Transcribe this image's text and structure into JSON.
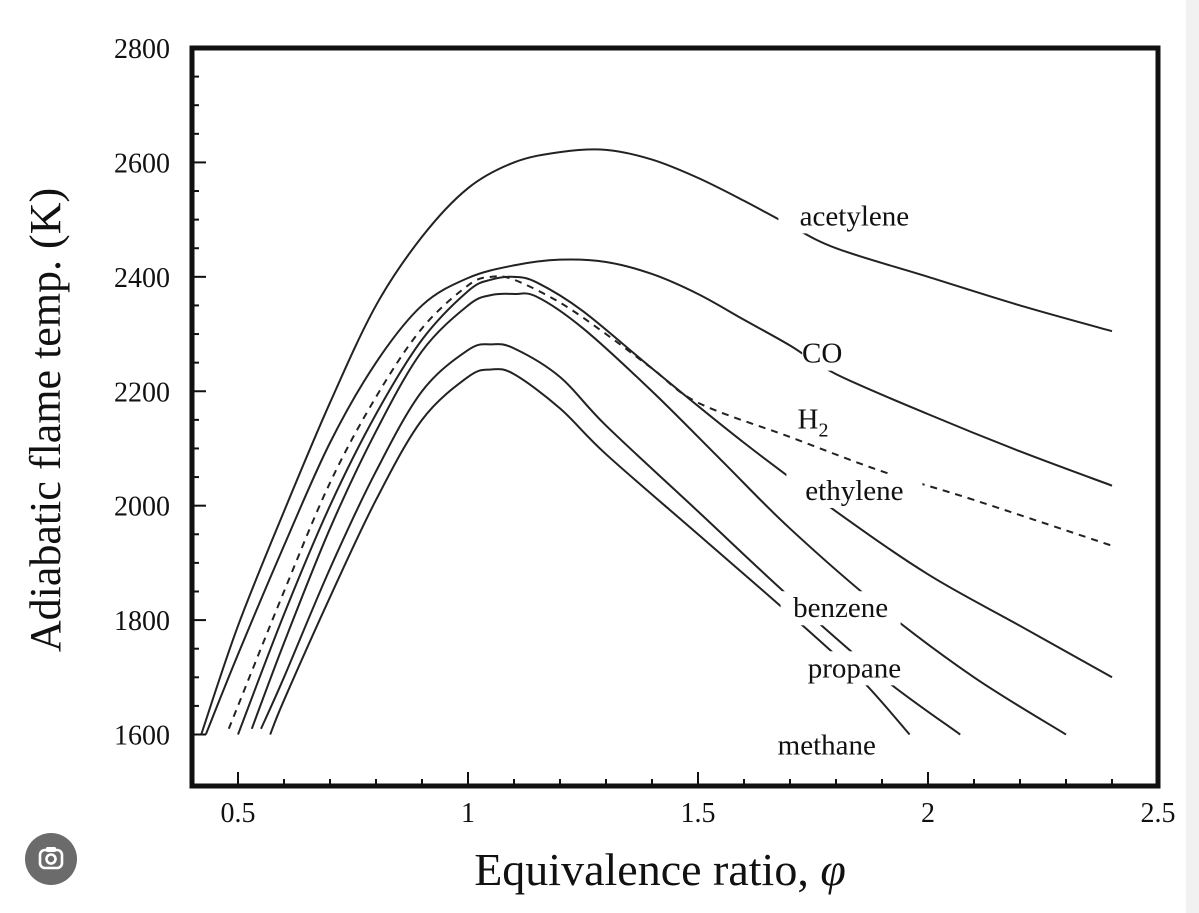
{
  "chart_data": {
    "type": "line",
    "title": "",
    "xlabel": "Equivalence ratio, ",
    "xlabel_symbol": "φ",
    "ylabel": "Adiabatic flame temp. (K)",
    "xlim": [
      0.4,
      2.5
    ],
    "ylim": [
      1510,
      2800
    ],
    "x_ticks": [
      0.5,
      1,
      1.5,
      2,
      2.5
    ],
    "x_tick_labels": [
      "0.5",
      "1",
      "1.5",
      "2",
      "2.5"
    ],
    "y_ticks": [
      1600,
      1800,
      2000,
      2200,
      2400,
      2600,
      2800
    ],
    "y_tick_labels": [
      "1600",
      "1800",
      "2000",
      "2200",
      "2400",
      "2600",
      "2800"
    ],
    "series": [
      {
        "name": "acetylene",
        "label": "acetylene",
        "dashed": false,
        "points": [
          [
            0.42,
            1600
          ],
          [
            0.5,
            1790
          ],
          [
            0.6,
            1990
          ],
          [
            0.7,
            2180
          ],
          [
            0.8,
            2350
          ],
          [
            0.9,
            2470
          ],
          [
            1.0,
            2555
          ],
          [
            1.1,
            2600
          ],
          [
            1.2,
            2618
          ],
          [
            1.3,
            2622
          ],
          [
            1.4,
            2605
          ],
          [
            1.5,
            2573
          ],
          [
            1.6,
            2533
          ],
          [
            1.7,
            2490
          ],
          [
            1.8,
            2450
          ],
          [
            2.0,
            2400
          ],
          [
            2.2,
            2350
          ],
          [
            2.4,
            2305
          ]
        ]
      },
      {
        "name": "CO",
        "label": "CO",
        "dashed": false,
        "points": [
          [
            0.43,
            1600
          ],
          [
            0.5,
            1740
          ],
          [
            0.6,
            1930
          ],
          [
            0.7,
            2110
          ],
          [
            0.8,
            2250
          ],
          [
            0.9,
            2350
          ],
          [
            1.0,
            2398
          ],
          [
            1.1,
            2420
          ],
          [
            1.2,
            2430
          ],
          [
            1.3,
            2426
          ],
          [
            1.4,
            2405
          ],
          [
            1.5,
            2370
          ],
          [
            1.6,
            2325
          ],
          [
            1.7,
            2280
          ],
          [
            1.8,
            2230
          ],
          [
            2.0,
            2160
          ],
          [
            2.2,
            2095
          ],
          [
            2.4,
            2035
          ]
        ]
      },
      {
        "name": "H2",
        "label": "H",
        "label_sub": "2",
        "dashed": true,
        "points": [
          [
            0.48,
            1610
          ],
          [
            0.6,
            1850
          ],
          [
            0.7,
            2040
          ],
          [
            0.8,
            2190
          ],
          [
            0.9,
            2310
          ],
          [
            1.0,
            2385
          ],
          [
            1.05,
            2400
          ],
          [
            1.1,
            2395
          ],
          [
            1.2,
            2355
          ],
          [
            1.3,
            2300
          ],
          [
            1.4,
            2240
          ],
          [
            1.5,
            2180
          ],
          [
            1.7,
            2120
          ],
          [
            1.9,
            2060
          ],
          [
            2.1,
            2010
          ],
          [
            2.4,
            1930
          ]
        ]
      },
      {
        "name": "ethylene",
        "label": "ethylene",
        "dashed": false,
        "points": [
          [
            0.5,
            1600
          ],
          [
            0.6,
            1810
          ],
          [
            0.7,
            2000
          ],
          [
            0.8,
            2160
          ],
          [
            0.9,
            2290
          ],
          [
            1.0,
            2375
          ],
          [
            1.05,
            2395
          ],
          [
            1.1,
            2400
          ],
          [
            1.15,
            2390
          ],
          [
            1.25,
            2340
          ],
          [
            1.4,
            2240
          ],
          [
            1.6,
            2110
          ],
          [
            1.8,
            1990
          ],
          [
            2.0,
            1880
          ],
          [
            2.2,
            1790
          ],
          [
            2.4,
            1700
          ]
        ]
      },
      {
        "name": "benzene",
        "label": "benzene",
        "dashed": false,
        "points": [
          [
            0.53,
            1610
          ],
          [
            0.6,
            1760
          ],
          [
            0.7,
            1960
          ],
          [
            0.8,
            2130
          ],
          [
            0.9,
            2270
          ],
          [
            1.0,
            2350
          ],
          [
            1.05,
            2368
          ],
          [
            1.1,
            2370
          ],
          [
            1.15,
            2365
          ],
          [
            1.25,
            2310
          ],
          [
            1.4,
            2200
          ],
          [
            1.55,
            2080
          ],
          [
            1.7,
            1960
          ],
          [
            1.9,
            1820
          ],
          [
            2.1,
            1700
          ],
          [
            2.3,
            1600
          ]
        ]
      },
      {
        "name": "propane",
        "label": "propane",
        "dashed": false,
        "points": [
          [
            0.55,
            1610
          ],
          [
            0.6,
            1700
          ],
          [
            0.7,
            1890
          ],
          [
            0.8,
            2060
          ],
          [
            0.9,
            2200
          ],
          [
            1.0,
            2272
          ],
          [
            1.05,
            2282
          ],
          [
            1.1,
            2275
          ],
          [
            1.2,
            2225
          ],
          [
            1.3,
            2140
          ],
          [
            1.5,
            1990
          ],
          [
            1.7,
            1840
          ],
          [
            1.9,
            1700
          ],
          [
            2.07,
            1600
          ]
        ]
      },
      {
        "name": "methane",
        "label": "methane",
        "dashed": false,
        "points": [
          [
            0.57,
            1600
          ],
          [
            0.6,
            1660
          ],
          [
            0.7,
            1840
          ],
          [
            0.8,
            2010
          ],
          [
            0.9,
            2150
          ],
          [
            1.0,
            2225
          ],
          [
            1.05,
            2238
          ],
          [
            1.1,
            2230
          ],
          [
            1.2,
            2170
          ],
          [
            1.3,
            2090
          ],
          [
            1.5,
            1950
          ],
          [
            1.7,
            1810
          ],
          [
            1.85,
            1700
          ],
          [
            1.96,
            1600
          ]
        ]
      }
    ]
  },
  "ui": {
    "lens_button_icon": "google-lens-icon"
  }
}
